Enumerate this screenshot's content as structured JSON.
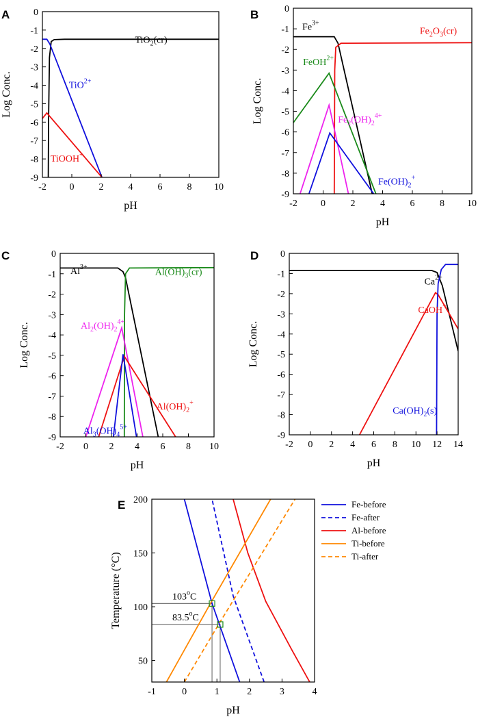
{
  "figure": {
    "panel_letters": [
      "A",
      "B",
      "C",
      "D",
      "E"
    ]
  },
  "chart_data": [
    {
      "panel": "A",
      "type": "line",
      "xlabel": "pH",
      "ylabel": "Log Conc.",
      "xlim": [
        -2,
        10
      ],
      "ylim": [
        -9,
        0
      ],
      "xticks": [
        -2,
        0,
        2,
        4,
        6,
        8,
        10
      ],
      "yticks": [
        -9,
        -8,
        -7,
        -6,
        -5,
        -4,
        -3,
        -2,
        -1,
        0
      ],
      "series": [
        {
          "name": "TiO2(cr)",
          "color": "#000000",
          "points": [
            [
              -1.6,
              -9
            ],
            [
              -1.58,
              -6
            ],
            [
              -1.52,
              -2.5
            ],
            [
              -1.4,
              -1.62
            ],
            [
              -1.2,
              -1.52
            ],
            [
              -0.5,
              -1.5
            ],
            [
              10,
              -1.5
            ]
          ]
        },
        {
          "name": "TiO2+",
          "color": "#1010dd",
          "points": [
            [
              -2,
              -1.5
            ],
            [
              -1.7,
              -1.5
            ],
            [
              -1.5,
              -1.75
            ],
            [
              2.05,
              -9
            ]
          ]
        },
        {
          "name": "TiOOH+",
          "color": "#ee1111",
          "points": [
            [
              -2,
              -5.8
            ],
            [
              -1.7,
              -5.5
            ],
            [
              2.05,
              -9
            ]
          ]
        }
      ],
      "annotations": [
        {
          "text": "TiO",
          "sub": "2",
          "after": "(cr)",
          "x": 4.3,
          "y": -1.7,
          "color": "#000000"
        },
        {
          "text": "TiO",
          "sup": "2+",
          "x": -0.2,
          "y": -4.15,
          "color": "#1010dd"
        },
        {
          "text": "TiOOH",
          "sup": "+",
          "x": -1.45,
          "y": -8.15,
          "color": "#ee1111"
        }
      ]
    },
    {
      "panel": "B",
      "type": "line",
      "xlabel": "pH",
      "ylabel": "Log Conc.",
      "xlim": [
        -2,
        10
      ],
      "ylim": [
        -9,
        0
      ],
      "xticks": [
        -2,
        0,
        2,
        4,
        6,
        8,
        10
      ],
      "yticks": [
        -9,
        -8,
        -7,
        -6,
        -5,
        -4,
        -3,
        -2,
        -1,
        0
      ],
      "series": [
        {
          "name": "Fe3+",
          "color": "#000000",
          "points": [
            [
              -2,
              -1.38
            ],
            [
              0.75,
              -1.38
            ],
            [
              1.0,
              -1.7
            ],
            [
              3.3,
              -9
            ]
          ]
        },
        {
          "name": "Fe2O3(cr)",
          "color": "#ee1111",
          "points": [
            [
              0.75,
              -9
            ],
            [
              0.78,
              -3
            ],
            [
              0.85,
              -1.9
            ],
            [
              1.2,
              -1.7
            ],
            [
              10,
              -1.67
            ]
          ]
        },
        {
          "name": "FeOH2+",
          "color": "#1a8a1a",
          "points": [
            [
              -2,
              -5.55
            ],
            [
              0.4,
              -3.15
            ],
            [
              3.55,
              -9
            ]
          ]
        },
        {
          "name": "Fe2(OH)2 4+",
          "color": "#ee22ee",
          "points": [
            [
              -1.55,
              -9
            ],
            [
              0.4,
              -4.7
            ],
            [
              1.7,
              -9
            ]
          ]
        },
        {
          "name": "Fe(OH)2+",
          "color": "#1010dd",
          "points": [
            [
              -0.95,
              -9
            ],
            [
              0.45,
              -6.05
            ],
            [
              3.4,
              -9
            ]
          ]
        }
      ],
      "annotations": [
        {
          "text": "Fe",
          "sup": "3+",
          "x": -1.4,
          "y": -1.05,
          "color": "#000000"
        },
        {
          "text": "Fe",
          "sub": "2",
          "mid": "O",
          "sub2": "3",
          "after": "(cr)",
          "x": 6.5,
          "y": -1.25,
          "color": "#ee1111"
        },
        {
          "text": "FeOH",
          "sup": "2+",
          "x": -1.35,
          "y": -2.75,
          "color": "#1a8a1a"
        },
        {
          "text": "Fe",
          "sub": "2",
          "mid": "(OH)",
          "sub2": "2",
          "sup": "4+",
          "x": 1.0,
          "y": -5.55,
          "color": "#ee22ee"
        },
        {
          "text": "Fe(OH)",
          "sub": "2",
          "sup": "+",
          "x": 3.7,
          "y": -8.55,
          "color": "#1010dd"
        }
      ]
    },
    {
      "panel": "C",
      "type": "line",
      "xlabel": "pH",
      "ylabel": "Log Conc.",
      "xlim": [
        -2,
        10
      ],
      "ylim": [
        -9,
        0
      ],
      "xticks": [
        -2,
        0,
        2,
        4,
        6,
        8,
        10
      ],
      "yticks": [
        -9,
        -8,
        -7,
        -6,
        -5,
        -4,
        -3,
        -2,
        -1,
        0
      ],
      "series": [
        {
          "name": "Al3+",
          "color": "#000000",
          "points": [
            [
              -2,
              -0.72
            ],
            [
              2.5,
              -0.72
            ],
            [
              2.9,
              -0.9
            ],
            [
              3.1,
              -1.2
            ],
            [
              5.65,
              -9
            ]
          ]
        },
        {
          "name": "Al(OH)3(cr)",
          "color": "#1a8a1a",
          "points": [
            [
              3.0,
              -9
            ],
            [
              3.02,
              -3
            ],
            [
              3.1,
              -1.0
            ],
            [
              3.4,
              -0.72
            ],
            [
              10,
              -0.7
            ]
          ]
        },
        {
          "name": "Al2(OH)2 4+",
          "color": "#ee22ee",
          "points": [
            [
              0,
              -9
            ],
            [
              2.8,
              -3.65
            ],
            [
              4.45,
              -9
            ]
          ]
        },
        {
          "name": "Al(OH)2+",
          "color": "#ee1111",
          "points": [
            [
              1.0,
              -9
            ],
            [
              3.0,
              -5.05
            ],
            [
              7.0,
              -9
            ]
          ]
        },
        {
          "name": "Al3(OH)4 5+",
          "color": "#1010dd",
          "points": [
            [
              2.15,
              -9
            ],
            [
              2.9,
              -4.95
            ],
            [
              3.95,
              -9
            ]
          ]
        }
      ],
      "annotations": [
        {
          "text": "Al",
          "sup": "3+",
          "x": -1.2,
          "y": -1.0,
          "color": "#000000"
        },
        {
          "text": "Al(OH)",
          "sub": "3",
          "after": "(cr)",
          "x": 5.4,
          "y": -1.05,
          "color": "#1a8a1a"
        },
        {
          "text": "Al",
          "sub": "2",
          "mid": "(OH)",
          "sub2": "2",
          "sup": "4+",
          "x": -0.4,
          "y": -3.7,
          "color": "#ee22ee"
        },
        {
          "text": "Al(OH)",
          "sub": "2",
          "sup": "+",
          "x": 5.5,
          "y": -7.65,
          "color": "#ee1111"
        },
        {
          "text": "Al",
          "sub": "3",
          "mid": "(OH)",
          "sub2": "4",
          "sup": "5+",
          "x": -0.2,
          "y": -8.85,
          "color": "#1010dd"
        }
      ]
    },
    {
      "panel": "D",
      "type": "line",
      "xlabel": "pH",
      "ylabel": "Log Conc.",
      "xlim": [
        -2,
        14
      ],
      "ylim": [
        -9,
        0
      ],
      "xticks": [
        -2,
        0,
        2,
        4,
        6,
        8,
        10,
        12,
        14
      ],
      "yticks": [
        -9,
        -8,
        -7,
        -6,
        -5,
        -4,
        -3,
        -2,
        -1,
        0
      ],
      "series": [
        {
          "name": "Ca2+",
          "color": "#000000",
          "points": [
            [
              -2,
              -0.85
            ],
            [
              11.5,
              -0.85
            ],
            [
              12.0,
              -0.95
            ],
            [
              12.5,
              -1.6
            ],
            [
              14,
              -4.85
            ]
          ]
        },
        {
          "name": "CaOH+",
          "color": "#ee1111",
          "points": [
            [
              4.65,
              -9
            ],
            [
              11.85,
              -1.95
            ],
            [
              12.1,
              -2.05
            ],
            [
              14,
              -3.75
            ]
          ]
        },
        {
          "name": "Ca(OH)2(s)",
          "color": "#1010dd",
          "points": [
            [
              11.95,
              -9
            ],
            [
              12.0,
              -3
            ],
            [
              12.1,
              -1.5
            ],
            [
              12.4,
              -0.8
            ],
            [
              12.8,
              -0.55
            ],
            [
              14,
              -0.55
            ]
          ]
        }
      ],
      "annotations": [
        {
          "text": "Ca",
          "sup": "2+",
          "x": 10.8,
          "y": -1.55,
          "color": "#000000"
        },
        {
          "text": "CaOH",
          "sup": "+",
          "x": 10.2,
          "y": -2.95,
          "color": "#ee1111"
        },
        {
          "text": "Ca(OH)",
          "sub": "2",
          "after": "(s)",
          "x": 7.8,
          "y": -7.95,
          "color": "#1010dd"
        }
      ]
    },
    {
      "panel": "E",
      "type": "line",
      "xlabel": "pH",
      "ylabel": "Temperature (°C)",
      "xlim": [
        -1,
        4
      ],
      "ylim": [
        30,
        200
      ],
      "xticks": [
        -1,
        0,
        1,
        2,
        3,
        4
      ],
      "yticks": [
        50,
        100,
        150,
        200
      ],
      "legend": {
        "position": "right",
        "entries": [
          "Fe-before",
          "Fe-after",
          "Al-before",
          "Ti-before",
          "Ti-after"
        ]
      },
      "series": [
        {
          "name": "Fe-before",
          "color": "#1010dd",
          "dash": "solid",
          "points": [
            [
              1.7,
              30
            ],
            [
              0.85,
              103
            ],
            [
              0,
              200
            ]
          ]
        },
        {
          "name": "Fe-after",
          "color": "#1010dd",
          "dash": "dashed",
          "points": [
            [
              2.45,
              30
            ],
            [
              1.5,
              110
            ],
            [
              0.85,
              200
            ]
          ]
        },
        {
          "name": "Al-before",
          "color": "#ee1111",
          "dash": "solid",
          "points": [
            [
              3.85,
              30
            ],
            [
              3.3,
              60
            ],
            [
              2.5,
              105
            ],
            [
              1.95,
              150
            ],
            [
              1.5,
              200
            ]
          ]
        },
        {
          "name": "Ti-before",
          "color": "#ff8800",
          "dash": "solid",
          "points": [
            [
              -0.55,
              30
            ],
            [
              0.8,
              103
            ],
            [
              2.65,
              200
            ]
          ]
        },
        {
          "name": "Ti-after",
          "color": "#ff8800",
          "dash": "dashed",
          "points": [
            [
              0,
              30
            ],
            [
              1.05,
              83.5
            ],
            [
              3.4,
              200
            ]
          ]
        }
      ],
      "markers": [
        {
          "label": "103",
          "sup": "o",
          "after": "C",
          "x": 0.85,
          "y": 103
        },
        {
          "label": "83.5",
          "sup": "o",
          "after": "C",
          "x": 1.1,
          "y": 83.5
        }
      ]
    }
  ]
}
